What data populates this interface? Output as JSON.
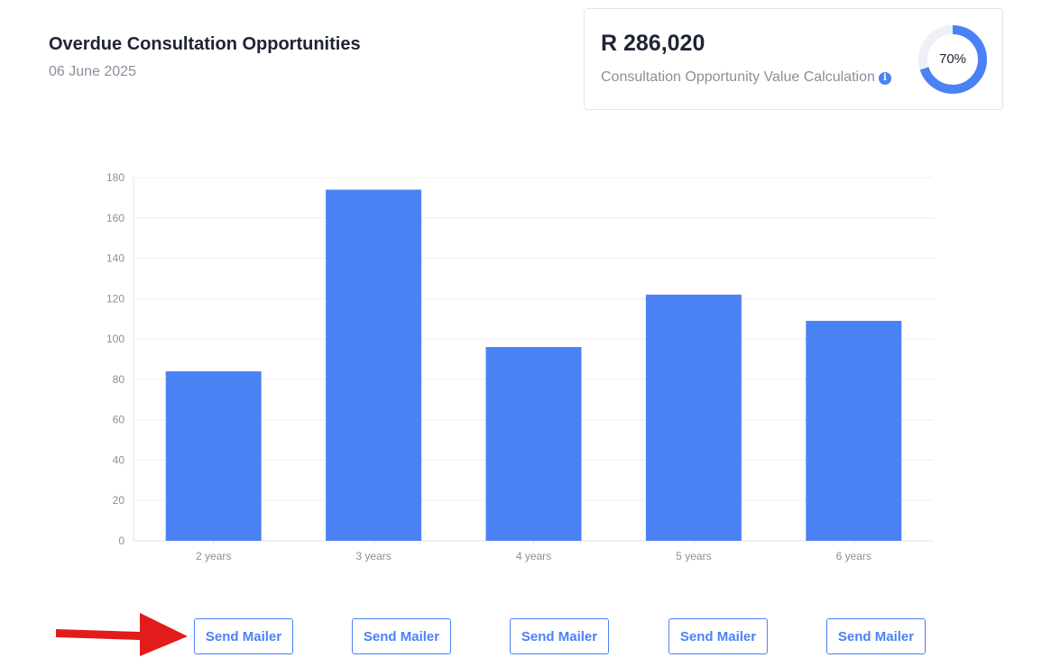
{
  "header": {
    "title": "Overdue Consultation Opportunities",
    "date": "06 June 2025"
  },
  "value_card": {
    "amount": "R 286,020",
    "label": "Consultation Opportunity Value Calculation",
    "info_icon": "info-icon",
    "percent_text": "70%",
    "percent_value": 70,
    "ring_color": "#4a82f5",
    "ring_track_color": "#eef0f5"
  },
  "chart_data": {
    "type": "bar",
    "categories": [
      "2 years",
      "3 years",
      "4 years",
      "5 years",
      "6 years"
    ],
    "values": [
      84,
      174,
      96,
      122,
      109
    ],
    "ylim": [
      0,
      180
    ],
    "yticks": [
      0,
      20,
      40,
      60,
      80,
      100,
      120,
      140,
      160,
      180
    ],
    "grid": true,
    "bar_color": "#4a82f5"
  },
  "actions": {
    "buttons": [
      {
        "label": "Send Mailer"
      },
      {
        "label": "Send Mailer"
      },
      {
        "label": "Send Mailer"
      },
      {
        "label": "Send Mailer"
      },
      {
        "label": "Send Mailer"
      }
    ]
  },
  "annotation": {
    "arrow_color": "#e21b1b"
  }
}
